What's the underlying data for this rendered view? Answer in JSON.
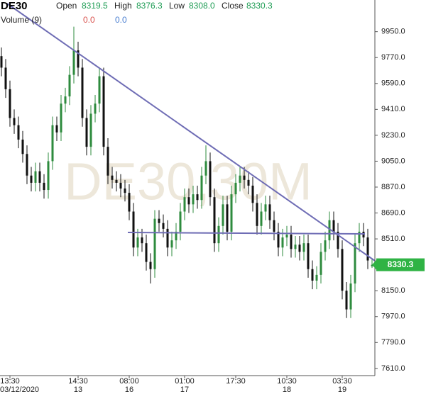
{
  "chart_data": {
    "type": "candlestick",
    "symbol": "DE30",
    "watermark": "DE30,30M",
    "legend": {
      "open_label": "Open",
      "open": "8319.5",
      "high_label": "High",
      "high": "8376.3",
      "low_label": "Low",
      "low": "8308.0",
      "close_label": "Close",
      "close": "8330.3"
    },
    "volume": {
      "label": "Volume (9)",
      "down": "0.0",
      "up": "0.0",
      "down_color": "#d9534f",
      "up_color": "#4a7fd1"
    },
    "last_price_label": "8330.3",
    "last_price_color": "#2fb344",
    "up_color": "#2e8b3e",
    "down_color": "#111111",
    "categories": [
      null,
      null,
      "13:30",
      null,
      null,
      null,
      null,
      null,
      null,
      null,
      null,
      null,
      null,
      null,
      null,
      null,
      null,
      null,
      "14:30",
      null,
      null,
      null,
      null,
      null,
      null,
      null,
      null,
      null,
      null,
      null,
      "08:00",
      null,
      null,
      null,
      null,
      null,
      null,
      null,
      null,
      null,
      null,
      null,
      null,
      "01:00",
      null,
      null,
      null,
      null,
      null,
      null,
      null,
      null,
      null,
      null,
      null,
      "17:30",
      null,
      null,
      null,
      null,
      null,
      null,
      null,
      null,
      null,
      null,
      null,
      "10:30",
      null,
      null,
      null,
      null,
      null,
      null,
      null,
      null,
      null,
      null,
      null,
      null,
      "03:30",
      null,
      null,
      null,
      null,
      null,
      null,
      null
    ],
    "dates": [
      null,
      null,
      "03/12/2020",
      null,
      null,
      null,
      null,
      null,
      null,
      null,
      null,
      null,
      null,
      null,
      null,
      null,
      null,
      null,
      "13",
      null,
      null,
      null,
      null,
      null,
      null,
      null,
      null,
      null,
      null,
      null,
      "16",
      null,
      null,
      null,
      null,
      null,
      null,
      null,
      null,
      null,
      null,
      null,
      null,
      "17",
      null,
      null,
      null,
      null,
      null,
      null,
      null,
      null,
      null,
      null,
      null,
      null,
      null,
      null,
      null,
      null,
      null,
      null,
      null,
      null,
      null,
      null,
      null,
      "18",
      null,
      null,
      null,
      null,
      null,
      null,
      null,
      null,
      null,
      null,
      null,
      null,
      "19",
      null,
      null,
      null,
      null,
      null,
      null,
      null
    ],
    "open": [
      9780,
      9700,
      9550,
      9350,
      9300,
      9200,
      9100,
      8950,
      8900,
      8980,
      8900,
      8850,
      9050,
      9300,
      9250,
      9450,
      9500,
      9650,
      9820,
      9700,
      9350,
      9150,
      9380,
      9450,
      9640,
      9150,
      8950,
      8920,
      8900,
      8860,
      8830,
      8700,
      8450,
      8520,
      8480,
      8350,
      8300,
      8650,
      8620,
      8580,
      8450,
      8500,
      8560,
      8700,
      8800,
      8750,
      8820,
      8780,
      8950,
      9050,
      8800,
      8480,
      8600,
      8750,
      8560,
      8820,
      8900,
      8950,
      8920,
      8880,
      8760,
      8600,
      8700,
      8750,
      8640,
      8560,
      8450,
      8520,
      8540,
      8440,
      8470,
      8420,
      8480,
      8300,
      8220,
      8260,
      8420,
      8500,
      8640,
      8560,
      8440,
      8150,
      8020,
      8200,
      8480,
      8560,
      8520,
      8319.5
    ],
    "high": [
      9840,
      9760,
      9610,
      9410,
      9360,
      9260,
      9160,
      9010,
      9040,
      9040,
      8960,
      9110,
      9360,
      9360,
      9510,
      9560,
      9710,
      9985,
      9880,
      9760,
      9410,
      9440,
      9510,
      9700,
      9700,
      9210,
      9010,
      8980,
      8960,
      8920,
      8890,
      8760,
      8580,
      8580,
      8540,
      8410,
      8710,
      8710,
      8680,
      8640,
      8560,
      8620,
      8760,
      8860,
      8860,
      8880,
      8880,
      9010,
      9160,
      9110,
      8860,
      8660,
      8810,
      8810,
      8880,
      8960,
      9010,
      9010,
      8980,
      8940,
      8820,
      8760,
      8810,
      8810,
      8700,
      8620,
      8580,
      8600,
      8600,
      8530,
      8530,
      8540,
      8540,
      8360,
      8320,
      8480,
      8560,
      8700,
      8700,
      8620,
      8500,
      8210,
      8260,
      8540,
      8620,
      8620,
      8580,
      8376.3
    ],
    "low": [
      9640,
      9490,
      9290,
      9240,
      9140,
      9040,
      8890,
      8840,
      8840,
      8840,
      8790,
      8790,
      8990,
      9190,
      9190,
      9390,
      9440,
      9590,
      9640,
      9290,
      9090,
      9090,
      9320,
      9390,
      9090,
      8890,
      8860,
      8840,
      8800,
      8770,
      8640,
      8390,
      8390,
      8420,
      8290,
      8200,
      8240,
      8560,
      8520,
      8390,
      8390,
      8440,
      8500,
      8640,
      8690,
      8690,
      8720,
      8720,
      8890,
      8740,
      8420,
      8420,
      8540,
      8500,
      8500,
      8760,
      8840,
      8860,
      8820,
      8700,
      8540,
      8540,
      8640,
      8580,
      8500,
      8390,
      8390,
      8460,
      8380,
      8380,
      8360,
      8360,
      8240,
      8160,
      8160,
      8200,
      8360,
      8440,
      8500,
      8380,
      8090,
      7960,
      7960,
      8140,
      8420,
      8460,
      8300,
      8308.0
    ],
    "close": [
      9700,
      9550,
      9350,
      9300,
      9200,
      9100,
      8950,
      8900,
      8980,
      8900,
      8850,
      9050,
      9300,
      9250,
      9450,
      9500,
      9650,
      9820,
      9700,
      9350,
      9150,
      9380,
      9450,
      9640,
      9150,
      8950,
      8920,
      8900,
      8860,
      8830,
      8700,
      8450,
      8520,
      8480,
      8350,
      8300,
      8650,
      8620,
      8580,
      8450,
      8500,
      8560,
      8700,
      8800,
      8750,
      8820,
      8780,
      8950,
      9050,
      8800,
      8480,
      8600,
      8750,
      8560,
      8820,
      8900,
      8950,
      8920,
      8880,
      8760,
      8600,
      8700,
      8750,
      8640,
      8560,
      8450,
      8520,
      8540,
      8440,
      8470,
      8420,
      8480,
      8300,
      8220,
      8260,
      8420,
      8500,
      8640,
      8560,
      8440,
      8150,
      8020,
      8200,
      8480,
      8560,
      8520,
      8360,
      8330.3
    ],
    "ylim": [
      7560,
      10170
    ],
    "yticks": [
      {
        "value": 9950,
        "label": "9950.0"
      },
      {
        "value": 9770,
        "label": "9770.0"
      },
      {
        "value": 9590,
        "label": "9590.0"
      },
      {
        "value": 9410,
        "label": "9410.0"
      },
      {
        "value": 9230,
        "label": "9230.0"
      },
      {
        "value": 9050,
        "label": "9050.0"
      },
      {
        "value": 8870,
        "label": "8870.0"
      },
      {
        "value": 8690,
        "label": "8690.0"
      },
      {
        "value": 8510,
        "label": "8510.0"
      },
      {
        "value": 8150,
        "label": "8150.0"
      },
      {
        "value": 7970,
        "label": "7970.0"
      },
      {
        "value": 7790,
        "label": "7790.0"
      },
      {
        "value": 7610,
        "label": "7610.0"
      }
    ],
    "grid": false
  }
}
